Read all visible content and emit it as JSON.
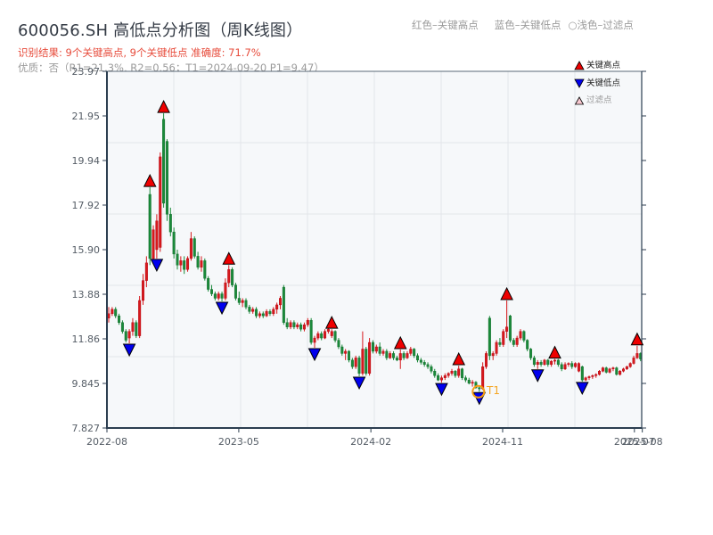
{
  "header": {
    "title": "600056.SH 高低点分析图（周K线图）",
    "subtitle": "识别结果: 9个关键高点, 9个关键低点   准确度: 71.7%",
    "quality": "优质：否（R1=21.3%, R2=0.56；T1=2024-09-20 P1=9.47）"
  },
  "top_legend": {
    "high": "红色–关键高点",
    "low": "蓝色–关键低点",
    "filtered": "○浅色–过滤点"
  },
  "legend": {
    "high": "关键高点",
    "low": "关键低点",
    "filtered": "过滤点"
  },
  "colors": {
    "up": "#d7191c",
    "down": "#1a8a3a",
    "high_marker": "#ee0000",
    "low_marker": "#0000ee",
    "filtered_marker": "#f8c8d0",
    "t1": "#f39c12",
    "axis": "#2c3e50",
    "grid": "#e3e6ea",
    "plot_bg": "#f6f8fa",
    "tick_text": "#555d66"
  },
  "annotation": {
    "label": "T1",
    "date": "2024-09-20",
    "price": 9.47,
    "index": 108
  },
  "chart_data": {
    "type": "candlestick",
    "title": "600056.SH 高低点分析图（周K线图）",
    "xlabel": "",
    "ylabel": "",
    "ylim": [
      7.827,
      23.97
    ],
    "y_ticks": [
      "23.97",
      "21.95",
      "19.94",
      "17.92",
      "15.90",
      "13.88",
      "11.86",
      "9.845",
      "7.827"
    ],
    "x_ticks": [
      {
        "label": "2022-08",
        "pos": -0.5
      },
      {
        "label": "2023-05",
        "pos": 37.9
      },
      {
        "label": "2024-02",
        "pos": 76.4
      },
      {
        "label": "2024-11",
        "pos": 114.8
      },
      {
        "label": "2025-07",
        "pos": 153.2
      },
      {
        "label": "2025-08",
        "pos": 155.5
      }
    ],
    "grid": true,
    "legend_position": "upper right",
    "ohlc_fields": [
      "open",
      "high",
      "low",
      "close"
    ],
    "candles": [
      [
        12.8,
        13.3,
        12.6,
        13.0
      ],
      [
        13.0,
        13.3,
        12.9,
        13.2
      ],
      [
        13.2,
        13.3,
        12.8,
        12.9
      ],
      [
        12.9,
        13.0,
        12.5,
        12.6
      ],
      [
        12.6,
        12.7,
        12.1,
        12.2
      ],
      [
        12.2,
        12.3,
        11.7,
        11.8
      ],
      [
        11.9,
        12.3,
        11.66,
        12.2
      ],
      [
        12.2,
        12.8,
        12.0,
        12.6
      ],
      [
        12.6,
        12.7,
        11.9,
        12.0
      ],
      [
        12.0,
        13.8,
        11.9,
        13.6
      ],
      [
        13.6,
        14.8,
        13.4,
        14.5
      ],
      [
        14.5,
        15.6,
        14.2,
        15.3
      ],
      [
        18.4,
        18.72,
        15.2,
        15.5
      ],
      [
        15.5,
        17.0,
        15.3,
        16.8
      ],
      [
        15.9,
        17.5,
        15.5,
        17.2
      ],
      [
        16.0,
        20.3,
        15.8,
        20.1
      ],
      [
        21.8,
        22.07,
        17.8,
        18.0
      ],
      [
        20.8,
        20.9,
        17.2,
        17.5
      ],
      [
        17.5,
        17.8,
        16.5,
        16.7
      ],
      [
        16.7,
        16.9,
        15.5,
        15.7
      ],
      [
        15.7,
        15.9,
        15.0,
        15.2
      ],
      [
        15.2,
        15.6,
        14.9,
        15.4
      ],
      [
        15.4,
        15.6,
        14.8,
        15.0
      ],
      [
        15.0,
        15.6,
        14.9,
        15.5
      ],
      [
        15.5,
        16.7,
        15.4,
        16.4
      ],
      [
        16.4,
        16.5,
        15.5,
        15.6
      ],
      [
        15.6,
        15.8,
        15.0,
        15.1
      ],
      [
        15.1,
        15.6,
        14.9,
        15.4
      ],
      [
        15.4,
        15.5,
        14.5,
        14.6
      ],
      [
        14.6,
        14.7,
        14.0,
        14.1
      ],
      [
        14.1,
        14.3,
        13.8,
        13.9
      ],
      [
        13.9,
        14.0,
        13.6,
        13.7
      ],
      [
        13.7,
        14.0,
        13.6,
        13.9
      ],
      [
        13.9,
        14.0,
        13.56,
        13.7
      ],
      [
        13.7,
        14.6,
        13.6,
        14.4
      ],
      [
        14.4,
        15.2,
        14.2,
        15.0
      ],
      [
        15.0,
        15.1,
        14.2,
        14.3
      ],
      [
        14.3,
        14.4,
        13.6,
        13.7
      ],
      [
        13.7,
        14.0,
        13.4,
        13.5
      ],
      [
        13.5,
        13.7,
        13.3,
        13.6
      ],
      [
        13.6,
        13.7,
        13.2,
        13.3
      ],
      [
        13.3,
        13.4,
        13.0,
        13.1
      ],
      [
        13.1,
        13.3,
        13.0,
        13.2
      ],
      [
        13.2,
        13.3,
        12.8,
        12.9
      ],
      [
        12.9,
        13.1,
        12.8,
        13.0
      ],
      [
        13.0,
        13.1,
        12.8,
        12.9
      ],
      [
        12.9,
        13.2,
        12.85,
        13.1
      ],
      [
        13.1,
        13.2,
        12.9,
        13.0
      ],
      [
        13.0,
        13.3,
        12.9,
        13.2
      ],
      [
        13.2,
        13.5,
        13.0,
        13.4
      ],
      [
        13.4,
        13.8,
        13.2,
        13.7
      ],
      [
        14.2,
        14.3,
        12.5,
        12.6
      ],
      [
        12.6,
        12.8,
        12.3,
        12.4
      ],
      [
        12.4,
        12.7,
        12.3,
        12.6
      ],
      [
        12.6,
        12.7,
        12.3,
        12.4
      ],
      [
        12.4,
        12.6,
        12.3,
        12.5
      ],
      [
        12.5,
        12.6,
        12.2,
        12.3
      ],
      [
        12.3,
        12.6,
        12.2,
        12.5
      ],
      [
        12.5,
        12.8,
        12.4,
        12.7
      ],
      [
        12.7,
        12.8,
        11.6,
        11.7
      ],
      [
        11.7,
        12.0,
        11.46,
        11.9
      ],
      [
        11.9,
        12.2,
        11.8,
        12.1
      ],
      [
        12.1,
        12.2,
        11.8,
        11.9
      ],
      [
        11.9,
        12.3,
        11.85,
        12.2
      ],
      [
        12.2,
        12.4,
        12.1,
        12.3
      ],
      [
        12.0,
        12.3,
        11.9,
        12.2
      ],
      [
        12.2,
        12.25,
        11.7,
        11.8
      ],
      [
        11.8,
        11.9,
        11.4,
        11.5
      ],
      [
        11.5,
        11.6,
        11.1,
        11.2
      ],
      [
        11.2,
        11.4,
        10.9,
        11.3
      ],
      [
        11.3,
        11.35,
        10.8,
        10.9
      ],
      [
        10.9,
        11.0,
        10.5,
        10.6
      ],
      [
        10.6,
        11.1,
        10.5,
        11.0
      ],
      [
        11.0,
        11.1,
        10.17,
        10.3
      ],
      [
        10.3,
        12.2,
        10.2,
        11.4
      ],
      [
        11.4,
        11.5,
        10.2,
        10.3
      ],
      [
        10.3,
        11.9,
        10.2,
        11.7
      ],
      [
        11.7,
        11.8,
        11.2,
        11.3
      ],
      [
        11.3,
        11.6,
        11.2,
        11.5
      ],
      [
        11.5,
        11.7,
        11.1,
        11.2
      ],
      [
        11.2,
        11.4,
        11.1,
        11.3
      ],
      [
        11.3,
        11.4,
        10.9,
        11.0
      ],
      [
        11.0,
        11.3,
        10.95,
        11.2
      ],
      [
        11.2,
        11.3,
        10.9,
        11.0
      ],
      [
        11.0,
        11.1,
        10.85,
        10.9
      ],
      [
        10.9,
        11.38,
        10.5,
        11.2
      ],
      [
        11.2,
        11.3,
        10.9,
        11.0
      ],
      [
        11.0,
        11.3,
        10.95,
        11.2
      ],
      [
        11.2,
        11.5,
        11.1,
        11.4
      ],
      [
        11.4,
        11.45,
        11.0,
        11.1
      ],
      [
        11.1,
        11.2,
        10.8,
        10.9
      ],
      [
        10.9,
        11.0,
        10.7,
        10.8
      ],
      [
        10.8,
        10.9,
        10.6,
        10.7
      ],
      [
        10.7,
        10.8,
        10.5,
        10.6
      ],
      [
        10.6,
        10.7,
        10.3,
        10.4
      ],
      [
        10.4,
        10.5,
        10.1,
        10.2
      ],
      [
        10.2,
        10.3,
        9.95,
        10.0
      ],
      [
        10.0,
        10.2,
        9.88,
        10.1
      ],
      [
        10.1,
        10.3,
        10.0,
        10.2
      ],
      [
        10.2,
        10.35,
        10.1,
        10.3
      ],
      [
        10.3,
        10.5,
        10.2,
        10.4
      ],
      [
        10.4,
        10.45,
        10.1,
        10.2
      ],
      [
        10.2,
        10.65,
        10.1,
        10.5
      ],
      [
        10.5,
        10.55,
        10.0,
        10.1
      ],
      [
        10.1,
        10.2,
        9.9,
        10.0
      ],
      [
        10.0,
        10.1,
        9.8,
        9.85
      ],
      [
        9.85,
        10.0,
        9.7,
        9.9
      ],
      [
        9.9,
        9.95,
        9.6,
        9.65
      ],
      [
        9.65,
        9.75,
        9.47,
        9.6
      ],
      [
        9.6,
        10.8,
        9.55,
        10.6
      ],
      [
        10.6,
        11.3,
        10.5,
        11.2
      ],
      [
        12.8,
        12.9,
        10.9,
        11.1
      ],
      [
        11.1,
        11.3,
        10.9,
        11.2
      ],
      [
        11.2,
        11.8,
        11.1,
        11.7
      ],
      [
        11.7,
        11.9,
        11.5,
        11.6
      ],
      [
        11.6,
        12.3,
        11.5,
        12.2
      ],
      [
        12.2,
        13.6,
        11.9,
        12.4
      ],
      [
        12.9,
        12.95,
        11.7,
        11.8
      ],
      [
        11.8,
        11.9,
        11.5,
        11.6
      ],
      [
        11.6,
        12.0,
        11.5,
        11.9
      ],
      [
        11.9,
        12.3,
        11.8,
        12.2
      ],
      [
        12.2,
        12.25,
        11.7,
        11.8
      ],
      [
        11.8,
        11.85,
        11.3,
        11.4
      ],
      [
        11.4,
        11.45,
        10.9,
        11.0
      ],
      [
        11.0,
        11.1,
        10.6,
        10.7
      ],
      [
        10.7,
        10.9,
        10.5,
        10.8
      ],
      [
        10.8,
        10.9,
        10.6,
        10.7
      ],
      [
        10.7,
        10.95,
        10.65,
        10.9
      ],
      [
        10.9,
        10.95,
        10.6,
        10.7
      ],
      [
        10.7,
        10.9,
        10.6,
        10.85
      ],
      [
        10.85,
        10.95,
        10.7,
        10.9
      ],
      [
        10.9,
        10.95,
        10.6,
        10.7
      ],
      [
        10.7,
        10.8,
        10.4,
        10.5
      ],
      [
        10.5,
        10.8,
        10.45,
        10.7
      ],
      [
        10.7,
        10.8,
        10.6,
        10.75
      ],
      [
        10.75,
        10.85,
        10.5,
        10.6
      ],
      [
        10.6,
        10.8,
        10.55,
        10.75
      ],
      [
        10.4,
        10.8,
        10.35,
        10.75
      ],
      [
        10.6,
        10.65,
        9.93,
        10.0
      ],
      [
        10.0,
        10.15,
        9.95,
        10.1
      ],
      [
        10.1,
        10.2,
        10.0,
        10.15
      ],
      [
        10.15,
        10.25,
        10.05,
        10.2
      ],
      [
        10.2,
        10.3,
        10.1,
        10.25
      ],
      [
        10.25,
        10.45,
        10.2,
        10.4
      ],
      [
        10.4,
        10.6,
        10.35,
        10.55
      ],
      [
        10.55,
        10.6,
        10.3,
        10.35
      ],
      [
        10.35,
        10.55,
        10.3,
        10.5
      ],
      [
        10.5,
        10.6,
        10.4,
        10.55
      ],
      [
        10.55,
        10.6,
        10.2,
        10.25
      ],
      [
        10.25,
        10.45,
        10.2,
        10.4
      ],
      [
        10.4,
        10.55,
        10.35,
        10.5
      ],
      [
        10.5,
        10.65,
        10.45,
        10.6
      ],
      [
        10.6,
        10.8,
        10.55,
        10.75
      ],
      [
        10.75,
        11.1,
        10.7,
        11.0
      ],
      [
        11.0,
        11.55,
        10.95,
        11.2
      ],
      [
        11.2,
        11.25,
        10.85,
        10.95
      ]
    ],
    "key_highs": [
      {
        "index": 12,
        "price": 18.72
      },
      {
        "index": 16,
        "price": 22.07
      },
      {
        "index": 35,
        "price": 15.2
      },
      {
        "index": 65,
        "price": 12.3
      },
      {
        "index": 85,
        "price": 11.38
      },
      {
        "index": 102,
        "price": 10.65
      },
      {
        "index": 116,
        "price": 13.6
      },
      {
        "index": 130,
        "price": 10.95
      },
      {
        "index": 154,
        "price": 11.55
      }
    ],
    "key_lows": [
      {
        "index": 6,
        "price": 11.66
      },
      {
        "index": 14,
        "price": 15.5
      },
      {
        "index": 33,
        "price": 13.56
      },
      {
        "index": 60,
        "price": 11.46
      },
      {
        "index": 73,
        "price": 10.17
      },
      {
        "index": 97,
        "price": 9.88
      },
      {
        "index": 108,
        "price": 9.47
      },
      {
        "index": 125,
        "price": 10.5
      },
      {
        "index": 138,
        "price": 9.93
      }
    ],
    "summary": {
      "key_high_count": 9,
      "key_low_count": 9,
      "accuracy": "71.7%",
      "quality": "否",
      "R1": "21.3%",
      "R2": 0.56,
      "T1": "2024-09-20",
      "P1": 9.47
    }
  }
}
